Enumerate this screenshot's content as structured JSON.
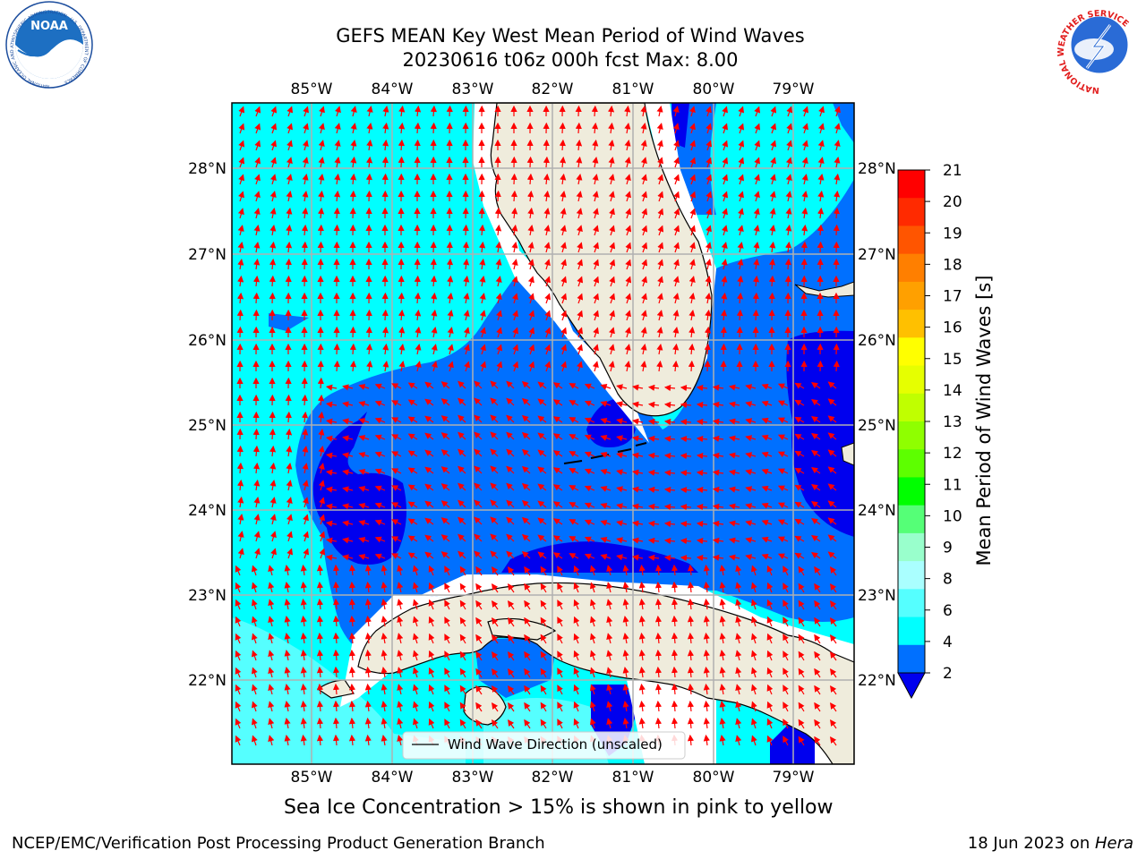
{
  "header": {
    "title_line1": "GEFS MEAN Key West Mean Period of Wind Waves",
    "title_line2": "20230616 t06z 000h fcst   Max: 8.00"
  },
  "logos": {
    "left_emblem_text": "NOAA",
    "left_ring_text": "NATIONAL OCEANIC AND ATMOSPHERIC ADMINISTRATION · U.S. DEPARTMENT OF COMMERCE",
    "right_ring_text": "NATIONAL WEATHER SERVICE"
  },
  "map": {
    "lon_labels": [
      "85°W",
      "84°W",
      "83°W",
      "82°W",
      "81°W",
      "80°W",
      "79°W"
    ],
    "lat_labels": [
      "28°N",
      "27°N",
      "26°N",
      "25°N",
      "24°N",
      "23°N",
      "22°N"
    ],
    "legend_label": "Wind Wave Direction (unscaled)",
    "arrow_color": "#ff0000",
    "land_color": "#efecdc",
    "field_colors": {
      "2-4": "#0070ff",
      "4-6": "#00ffff",
      "6-8": "#55ffff",
      "below-2": "#0000ee"
    }
  },
  "colorbar": {
    "label": "Mean Period of Wind Waves [s]",
    "ticks": [
      "21",
      "20",
      "19",
      "18",
      "17",
      "16",
      "15",
      "14",
      "13",
      "12",
      "11",
      "10",
      "9",
      "8",
      "6",
      "4",
      "2"
    ],
    "colors_top_to_bottom": [
      "#ff0000",
      "#ff2a00",
      "#ff5500",
      "#ff7f00",
      "#ffa000",
      "#ffc000",
      "#ffff00",
      "#e6ff00",
      "#c0ff00",
      "#8fff00",
      "#5dff00",
      "#00ff00",
      "#55ff77",
      "#99ffcc",
      "#aaffff",
      "#55ffff",
      "#00ffff",
      "#0070ff"
    ],
    "under_color": "#0000ee"
  },
  "note": "Sea Ice Concentration > 15% is shown in pink to yellow",
  "footer": {
    "left": "NCEP/EMC/Verification Post Processing Product Generation Branch",
    "right_date": "18 Jun 2023 on ",
    "right_host": "Hera"
  }
}
